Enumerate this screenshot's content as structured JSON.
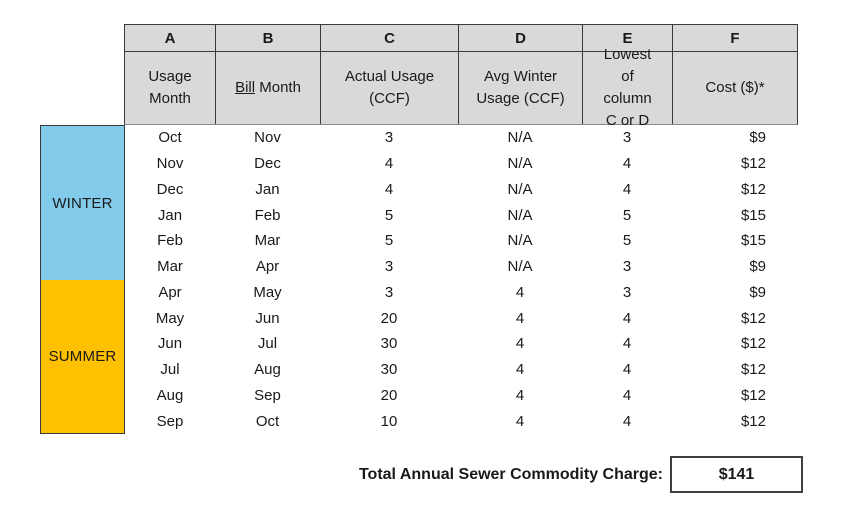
{
  "colors": {
    "winter_blue": "#82CBEB",
    "summer_gold": "#FFC000",
    "header_bg": "#D9D9D9"
  },
  "table": {
    "column_letters": [
      "A",
      "B",
      "C",
      "D",
      "E",
      "F"
    ],
    "column_headers": {
      "a": "Usage Month",
      "b_underlined": "Bill",
      "b_rest": " Month",
      "c": "Actual Usage (CCF)",
      "d": "Avg Winter Usage (CCF)",
      "e": "Lowest of column C or D",
      "f": "Cost ($)*"
    },
    "seasons": {
      "winter": "WINTER",
      "summer": "SUMMER"
    },
    "rows": [
      {
        "usage_month": "Oct",
        "bill_month": "Nov",
        "actual_usage_ccf": "3",
        "avg_winter_usage_ccf": "N/A",
        "lowest_of_c_or_d": "3",
        "cost": "$9"
      },
      {
        "usage_month": "Nov",
        "bill_month": "Dec",
        "actual_usage_ccf": "4",
        "avg_winter_usage_ccf": "N/A",
        "lowest_of_c_or_d": "4",
        "cost": "$12"
      },
      {
        "usage_month": "Dec",
        "bill_month": "Jan",
        "actual_usage_ccf": "4",
        "avg_winter_usage_ccf": "N/A",
        "lowest_of_c_or_d": "4",
        "cost": "$12"
      },
      {
        "usage_month": "Jan",
        "bill_month": "Feb",
        "actual_usage_ccf": "5",
        "avg_winter_usage_ccf": "N/A",
        "lowest_of_c_or_d": "5",
        "cost": "$15"
      },
      {
        "usage_month": "Feb",
        "bill_month": "Mar",
        "actual_usage_ccf": "5",
        "avg_winter_usage_ccf": "N/A",
        "lowest_of_c_or_d": "5",
        "cost": "$15"
      },
      {
        "usage_month": "Mar",
        "bill_month": "Apr",
        "actual_usage_ccf": "3",
        "avg_winter_usage_ccf": "N/A",
        "lowest_of_c_or_d": "3",
        "cost": "$9"
      },
      {
        "usage_month": "Apr",
        "bill_month": "May",
        "actual_usage_ccf": "3",
        "avg_winter_usage_ccf": "4",
        "lowest_of_c_or_d": "3",
        "cost": "$9"
      },
      {
        "usage_month": "May",
        "bill_month": "Jun",
        "actual_usage_ccf": "20",
        "avg_winter_usage_ccf": "4",
        "lowest_of_c_or_d": "4",
        "cost": "$12"
      },
      {
        "usage_month": "Jun",
        "bill_month": "Jul",
        "actual_usage_ccf": "30",
        "avg_winter_usage_ccf": "4",
        "lowest_of_c_or_d": "4",
        "cost": "$12"
      },
      {
        "usage_month": "Jul",
        "bill_month": "Aug",
        "actual_usage_ccf": "30",
        "avg_winter_usage_ccf": "4",
        "lowest_of_c_or_d": "4",
        "cost": "$12"
      },
      {
        "usage_month": "Aug",
        "bill_month": "Sep",
        "actual_usage_ccf": "20",
        "avg_winter_usage_ccf": "4",
        "lowest_of_c_or_d": "4",
        "cost": "$12"
      },
      {
        "usage_month": "Sep",
        "bill_month": "Oct",
        "actual_usage_ccf": "10",
        "avg_winter_usage_ccf": "4",
        "lowest_of_c_or_d": "4",
        "cost": "$12"
      }
    ]
  },
  "total": {
    "label": "Total Annual Sewer Commodity Charge:",
    "value": "$141"
  }
}
